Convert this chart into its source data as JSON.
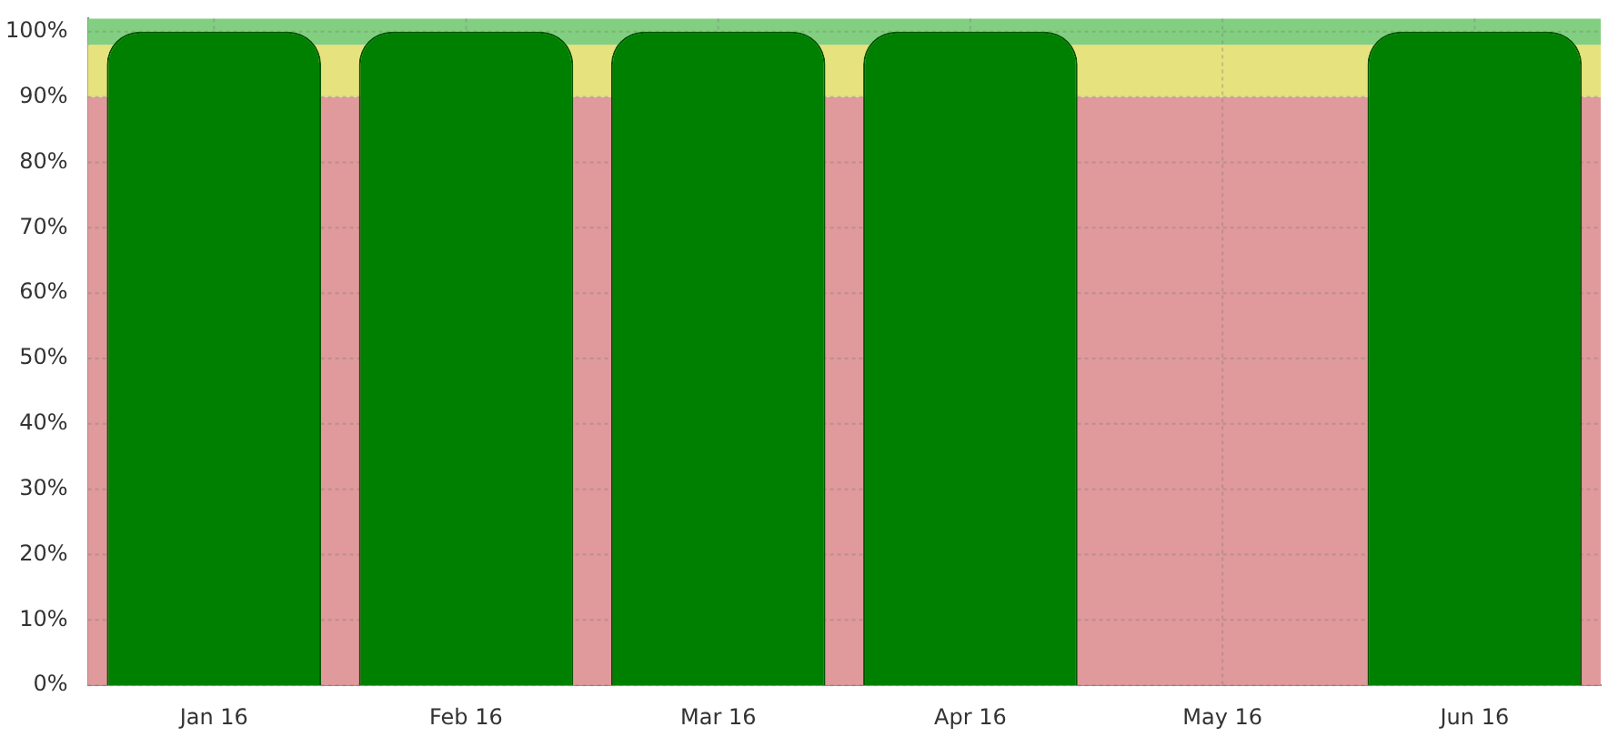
{
  "chart_data": {
    "type": "bar",
    "categories": [
      "Jan 16",
      "Feb 16",
      "Mar 16",
      "Apr 16",
      "May 16",
      "Jun 16"
    ],
    "values": [
      100,
      100,
      100,
      100,
      null,
      100
    ],
    "color": "#008000",
    "ylim": [
      0,
      102
    ],
    "yticks": [
      {
        "value": 0,
        "label": "0%"
      },
      {
        "value": 10,
        "label": "10%"
      },
      {
        "value": 20,
        "label": "20%"
      },
      {
        "value": 30,
        "label": "30%"
      },
      {
        "value": 40,
        "label": "40%"
      },
      {
        "value": 50,
        "label": "50%"
      },
      {
        "value": 60,
        "label": "60%"
      },
      {
        "value": 70,
        "label": "70%"
      },
      {
        "value": 80,
        "label": "80%"
      },
      {
        "value": 90,
        "label": "90%"
      },
      {
        "value": 100,
        "label": "100%"
      }
    ],
    "bands": [
      {
        "axis": "y",
        "from": 0,
        "to": 90,
        "color": "#e09a9c"
      },
      {
        "axis": "y",
        "from": 90,
        "to": 98,
        "color": "#e6e27e"
      },
      {
        "axis": "y",
        "from": 98,
        "to": 102,
        "color": "#82cf82"
      }
    ],
    "grid": true,
    "legend": false
  }
}
